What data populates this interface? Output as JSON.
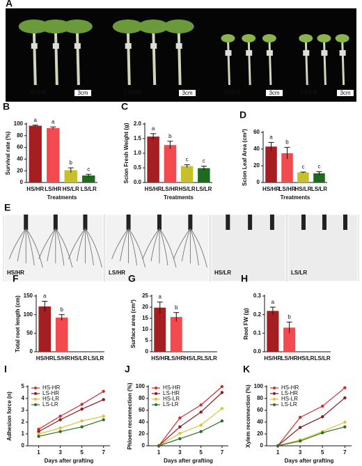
{
  "photo_panels": [
    {
      "panel": "A",
      "labels": [
        "HS/HR",
        "LS/HR",
        "HS/LR",
        "LS/LR"
      ],
      "scale_bars": [
        "3cm",
        "3cm",
        "3cm",
        "3cm"
      ]
    },
    {
      "panel": "E",
      "labels": [
        "HS/HR",
        "LS/HR",
        "HS/LR",
        "LS/LR"
      ]
    }
  ],
  "chart_data": [
    {
      "type": "bar",
      "panel": "B",
      "y_label": "Survival rate (%)",
      "x_label": "Treatments",
      "categories": [
        "HS/HR",
        "LS/HR",
        "HS/LR",
        "LS/LR"
      ],
      "values": [
        97,
        93,
        21,
        12
      ],
      "errors": [
        1,
        2,
        4,
        2
      ],
      "annotations": [
        "a",
        "a",
        "b",
        "c"
      ],
      "colors": [
        "#a51e22",
        "#f24a4f",
        "#c6c12a",
        "#1e6b1e"
      ],
      "ylim": [
        0,
        100
      ],
      "yticks": [
        0,
        20,
        40,
        60,
        80,
        100
      ]
    },
    {
      "type": "bar",
      "panel": "C",
      "y_label": "Scion Fresh Weight (g)",
      "x_label": "Treatments",
      "categories": [
        "HS/HR",
        "LS/HR",
        "HS/LR",
        "LS/LR"
      ],
      "values": [
        1.57,
        1.28,
        0.56,
        0.49
      ],
      "errors": [
        0.1,
        0.13,
        0.05,
        0.07
      ],
      "annotations": [
        "a",
        "b",
        "c",
        "c"
      ],
      "colors": [
        "#a51e22",
        "#f24a4f",
        "#c6c12a",
        "#1e6b1e"
      ],
      "ylim": [
        0,
        2
      ],
      "yticks": [
        {
          "value": 0,
          "label": "0.0"
        },
        0.5,
        {
          "value": 1,
          "label": "1.0"
        },
        1.5,
        {
          "value": 2,
          "label": "2.0"
        }
      ]
    },
    {
      "type": "bar",
      "panel": "D",
      "y_label": "Scion Leaf Area (cm²)",
      "x_label": "Treatments",
      "categories": [
        "HS/HR",
        "LS/HR",
        "HS/LR",
        "LS/LR"
      ],
      "values": [
        43,
        35,
        12,
        11
      ],
      "errors": [
        5,
        7,
        0.5,
        2
      ],
      "annotations": [
        "a",
        "b",
        "c",
        "c"
      ],
      "colors": [
        "#a51e22",
        "#f24a4f",
        "#c6c12a",
        "#1e6b1e"
      ],
      "ylim": [
        0,
        60
      ],
      "yticks": [
        0,
        20,
        40,
        60
      ]
    },
    {
      "type": "bar",
      "panel": "F",
      "y_label": "Total root length (cm)",
      "categories": [
        "HS/HR",
        "LS/HR",
        "HS/LR",
        "LS/LR"
      ],
      "values": [
        122,
        92,
        0,
        0
      ],
      "errors": [
        14,
        8,
        null,
        null
      ],
      "annotations": [
        "a",
        "b",
        null,
        null
      ],
      "colors": [
        "#a51e22",
        "#f24a4f",
        "#c6c12a",
        "#1e6b1e"
      ],
      "ylim": [
        0,
        150
      ],
      "yticks": [
        0,
        50,
        100,
        150
      ]
    },
    {
      "type": "bar",
      "panel": "G",
      "y_label": "Surface area (cm²)",
      "categories": [
        "HS/HR",
        "LS/HR",
        "HS/LR",
        "LS/LR"
      ],
      "values": [
        19.8,
        15.6,
        0,
        0
      ],
      "errors": [
        2.5,
        2,
        null,
        null
      ],
      "annotations": [
        "a",
        "b",
        null,
        null
      ],
      "colors": [
        "#a51e22",
        "#f24a4f",
        "#c6c12a",
        "#1e6b1e"
      ],
      "ylim": [
        0,
        25
      ],
      "yticks": [
        0,
        5,
        10,
        15,
        20,
        25
      ]
    },
    {
      "type": "bar",
      "panel": "H",
      "y_label": "Root FW (g)",
      "categories": [
        "HS/HR",
        "LS/HR",
        "HS/LR",
        "LS/LR"
      ],
      "values": [
        0.22,
        0.13,
        0,
        0
      ],
      "errors": [
        0.02,
        0.03,
        null,
        null
      ],
      "annotations": [
        "a",
        "b",
        null,
        null
      ],
      "colors": [
        "#a51e22",
        "#f24a4f",
        "#c6c12a",
        "#1e6b1e"
      ],
      "ylim": [
        0,
        0.3
      ],
      "yticks": [
        {
          "value": 0,
          "label": "0.0"
        },
        0.1,
        0.2,
        0.3
      ]
    },
    {
      "type": "line",
      "panel": "I",
      "y_label": "Adhesion force (n)",
      "x_label": "Days after grafting",
      "x": [
        1,
        3,
        5,
        7
      ],
      "xlim": [
        0,
        7.6
      ],
      "xticks": [
        1,
        3,
        5,
        7
      ],
      "ylim": [
        0,
        5
      ],
      "yticks": [
        0,
        1,
        2,
        3,
        4,
        5
      ],
      "series": [
        {
          "name": "HS-HR",
          "color": "#d42a2f",
          "values": [
            1.4,
            2.5,
            3.5,
            4.6
          ]
        },
        {
          "name": "LS-HR",
          "color": "#8a1a1c",
          "values": [
            1.2,
            2.2,
            3.1,
            3.9
          ]
        },
        {
          "name": "HS-LR",
          "color": "#d8c630",
          "values": [
            1.0,
            1.5,
            2.1,
            2.5
          ]
        },
        {
          "name": "LS-LR",
          "color": "#2a6e2a",
          "values": [
            0.8,
            1.2,
            1.6,
            2.2
          ]
        }
      ]
    },
    {
      "type": "line",
      "panel": "J",
      "y_label": "Phloem reconnection (%)",
      "x_label": "Days after grafting",
      "x": [
        1,
        3,
        5,
        7
      ],
      "xlim": [
        0,
        7.6
      ],
      "xticks": [
        1,
        3,
        5,
        7
      ],
      "ylim": [
        0,
        100
      ],
      "yticks": [
        0,
        20,
        40,
        60,
        80,
        100
      ],
      "series": [
        {
          "name": "HS-HR",
          "color": "#d42a2f",
          "values": [
            0,
            47,
            69,
            100
          ]
        },
        {
          "name": "LS-HR",
          "color": "#8a1a1c",
          "values": [
            0,
            32,
            57,
            90
          ]
        },
        {
          "name": "HS-LR",
          "color": "#d8c630",
          "values": [
            0,
            21,
            35,
            63
          ]
        },
        {
          "name": "LS-LR",
          "color": "#2a6e2a",
          "values": [
            0,
            12,
            24,
            42
          ]
        }
      ]
    },
    {
      "type": "line",
      "panel": "K",
      "y_label": "Xylem reconnection (%)",
      "x_label": "Days after grafting",
      "x": [
        1,
        3,
        5,
        7
      ],
      "xlim": [
        0,
        7.6
      ],
      "xticks": [
        1,
        3,
        5,
        7
      ],
      "ylim": [
        0,
        100
      ],
      "yticks": [
        0,
        20,
        40,
        60,
        80,
        100
      ],
      "series": [
        {
          "name": "HS-HR",
          "color": "#d42a2f",
          "values": [
            0,
            48,
            67,
            98
          ]
        },
        {
          "name": "LS-HR",
          "color": "#8a1a1c",
          "values": [
            0,
            31,
            49,
            81
          ]
        },
        {
          "name": "HS-LR",
          "color": "#d8c630",
          "values": [
            0,
            10,
            24,
            40
          ]
        },
        {
          "name": "LS-LR",
          "color": "#2a6e2a",
          "values": [
            0,
            8,
            22,
            32
          ]
        }
      ]
    }
  ]
}
